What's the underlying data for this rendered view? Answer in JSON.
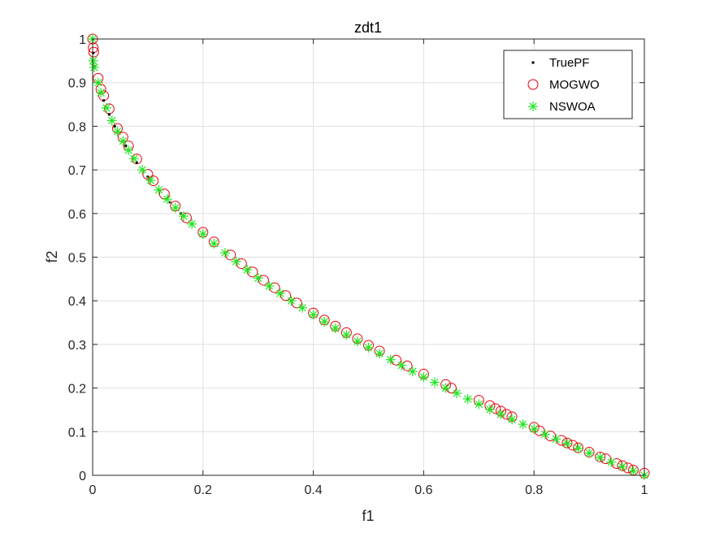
{
  "chart_data": {
    "type": "scatter",
    "title": "zdt1",
    "xlabel": "f1",
    "ylabel": "f2",
    "xlim": [
      0,
      1
    ],
    "ylim": [
      0,
      1
    ],
    "grid": true,
    "legend_position": "top-right",
    "x_ticks": [
      "0",
      "0.2",
      "0.4",
      "0.6",
      "0.8",
      "1"
    ],
    "x_tick_values": [
      0,
      0.2,
      0.4,
      0.6,
      0.8,
      1
    ],
    "y_ticks": [
      "0",
      "0.1",
      "0.2",
      "0.3",
      "0.4",
      "0.5",
      "0.6",
      "0.7",
      "0.8",
      "0.9",
      "1"
    ],
    "y_tick_values": [
      0,
      0.1,
      0.2,
      0.3,
      0.4,
      0.5,
      0.6,
      0.7,
      0.8,
      0.9,
      1
    ],
    "series": [
      {
        "name": "TruePF",
        "marker": "dot",
        "color": "#000000",
        "x": [
          0.0,
          0.001,
          0.004,
          0.01,
          0.02,
          0.03,
          0.04,
          0.06,
          0.08,
          0.1,
          0.12,
          0.14,
          0.16,
          0.18,
          0.2,
          0.22,
          0.24,
          0.26,
          0.28,
          0.3,
          0.32,
          0.34,
          0.36,
          0.38,
          0.4,
          0.42,
          0.44,
          0.46,
          0.48,
          0.5,
          0.52,
          0.54,
          0.56,
          0.58,
          0.6,
          0.62,
          0.64,
          0.66,
          0.68,
          0.7,
          0.72,
          0.74,
          0.76,
          0.78,
          0.8,
          0.82,
          0.84,
          0.86,
          0.88,
          0.9,
          0.92,
          0.94,
          0.96,
          0.98,
          1.0
        ],
        "y": [
          1.0,
          0.968,
          0.937,
          0.9,
          0.859,
          0.827,
          0.8,
          0.755,
          0.717,
          0.684,
          0.654,
          0.626,
          0.6,
          0.576,
          0.553,
          0.531,
          0.51,
          0.49,
          0.471,
          0.452,
          0.434,
          0.417,
          0.4,
          0.384,
          0.368,
          0.352,
          0.337,
          0.322,
          0.307,
          0.293,
          0.279,
          0.265,
          0.252,
          0.238,
          0.225,
          0.213,
          0.2,
          0.188,
          0.175,
          0.163,
          0.151,
          0.14,
          0.128,
          0.117,
          0.106,
          0.094,
          0.083,
          0.073,
          0.062,
          0.051,
          0.041,
          0.03,
          0.02,
          0.01,
          0.0
        ]
      },
      {
        "name": "MOGWO",
        "marker": "circle",
        "color": "#e8000b",
        "x": [
          0.0,
          0.001,
          0.002,
          0.01,
          0.015,
          0.02,
          0.03,
          0.045,
          0.055,
          0.065,
          0.08,
          0.1,
          0.11,
          0.13,
          0.15,
          0.17,
          0.2,
          0.22,
          0.25,
          0.27,
          0.29,
          0.31,
          0.33,
          0.35,
          0.37,
          0.4,
          0.42,
          0.44,
          0.46,
          0.48,
          0.5,
          0.52,
          0.55,
          0.57,
          0.6,
          0.64,
          0.65,
          0.7,
          0.72,
          0.73,
          0.74,
          0.75,
          0.76,
          0.8,
          0.81,
          0.83,
          0.85,
          0.86,
          0.87,
          0.88,
          0.9,
          0.92,
          0.93,
          0.95,
          0.96,
          0.97,
          0.98,
          1.0
        ],
        "y": [
          1.0,
          0.98,
          0.97,
          0.91,
          0.885,
          0.87,
          0.84,
          0.795,
          0.775,
          0.755,
          0.725,
          0.69,
          0.675,
          0.645,
          0.617,
          0.59,
          0.557,
          0.535,
          0.505,
          0.485,
          0.466,
          0.447,
          0.43,
          0.412,
          0.395,
          0.372,
          0.356,
          0.342,
          0.327,
          0.313,
          0.298,
          0.285,
          0.264,
          0.251,
          0.232,
          0.208,
          0.2,
          0.172,
          0.16,
          0.153,
          0.147,
          0.14,
          0.134,
          0.11,
          0.102,
          0.09,
          0.08,
          0.074,
          0.069,
          0.063,
          0.053,
          0.042,
          0.038,
          0.027,
          0.022,
          0.017,
          0.012,
          0.005
        ]
      },
      {
        "name": "NSWOA",
        "marker": "star",
        "color": "#22e622",
        "x": [
          0.0,
          0.001,
          0.003,
          0.01,
          0.015,
          0.025,
          0.035,
          0.045,
          0.055,
          0.065,
          0.075,
          0.09,
          0.105,
          0.12,
          0.135,
          0.15,
          0.165,
          0.18,
          0.2,
          0.22,
          0.24,
          0.26,
          0.28,
          0.3,
          0.32,
          0.34,
          0.36,
          0.38,
          0.4,
          0.42,
          0.44,
          0.46,
          0.48,
          0.5,
          0.52,
          0.54,
          0.56,
          0.58,
          0.6,
          0.62,
          0.64,
          0.66,
          0.68,
          0.7,
          0.72,
          0.74,
          0.76,
          0.78,
          0.8,
          0.82,
          0.84,
          0.86,
          0.88,
          0.9,
          0.92,
          0.94,
          0.96,
          0.98,
          1.0
        ],
        "y": [
          1.0,
          0.95,
          0.935,
          0.9,
          0.877,
          0.842,
          0.813,
          0.788,
          0.766,
          0.745,
          0.726,
          0.7,
          0.676,
          0.654,
          0.633,
          0.613,
          0.594,
          0.576,
          0.553,
          0.531,
          0.51,
          0.49,
          0.471,
          0.452,
          0.434,
          0.417,
          0.4,
          0.384,
          0.368,
          0.352,
          0.337,
          0.322,
          0.307,
          0.293,
          0.279,
          0.265,
          0.252,
          0.238,
          0.225,
          0.213,
          0.2,
          0.188,
          0.175,
          0.163,
          0.151,
          0.14,
          0.128,
          0.117,
          0.106,
          0.094,
          0.083,
          0.073,
          0.062,
          0.051,
          0.041,
          0.03,
          0.02,
          0.01,
          0.0
        ]
      }
    ]
  }
}
